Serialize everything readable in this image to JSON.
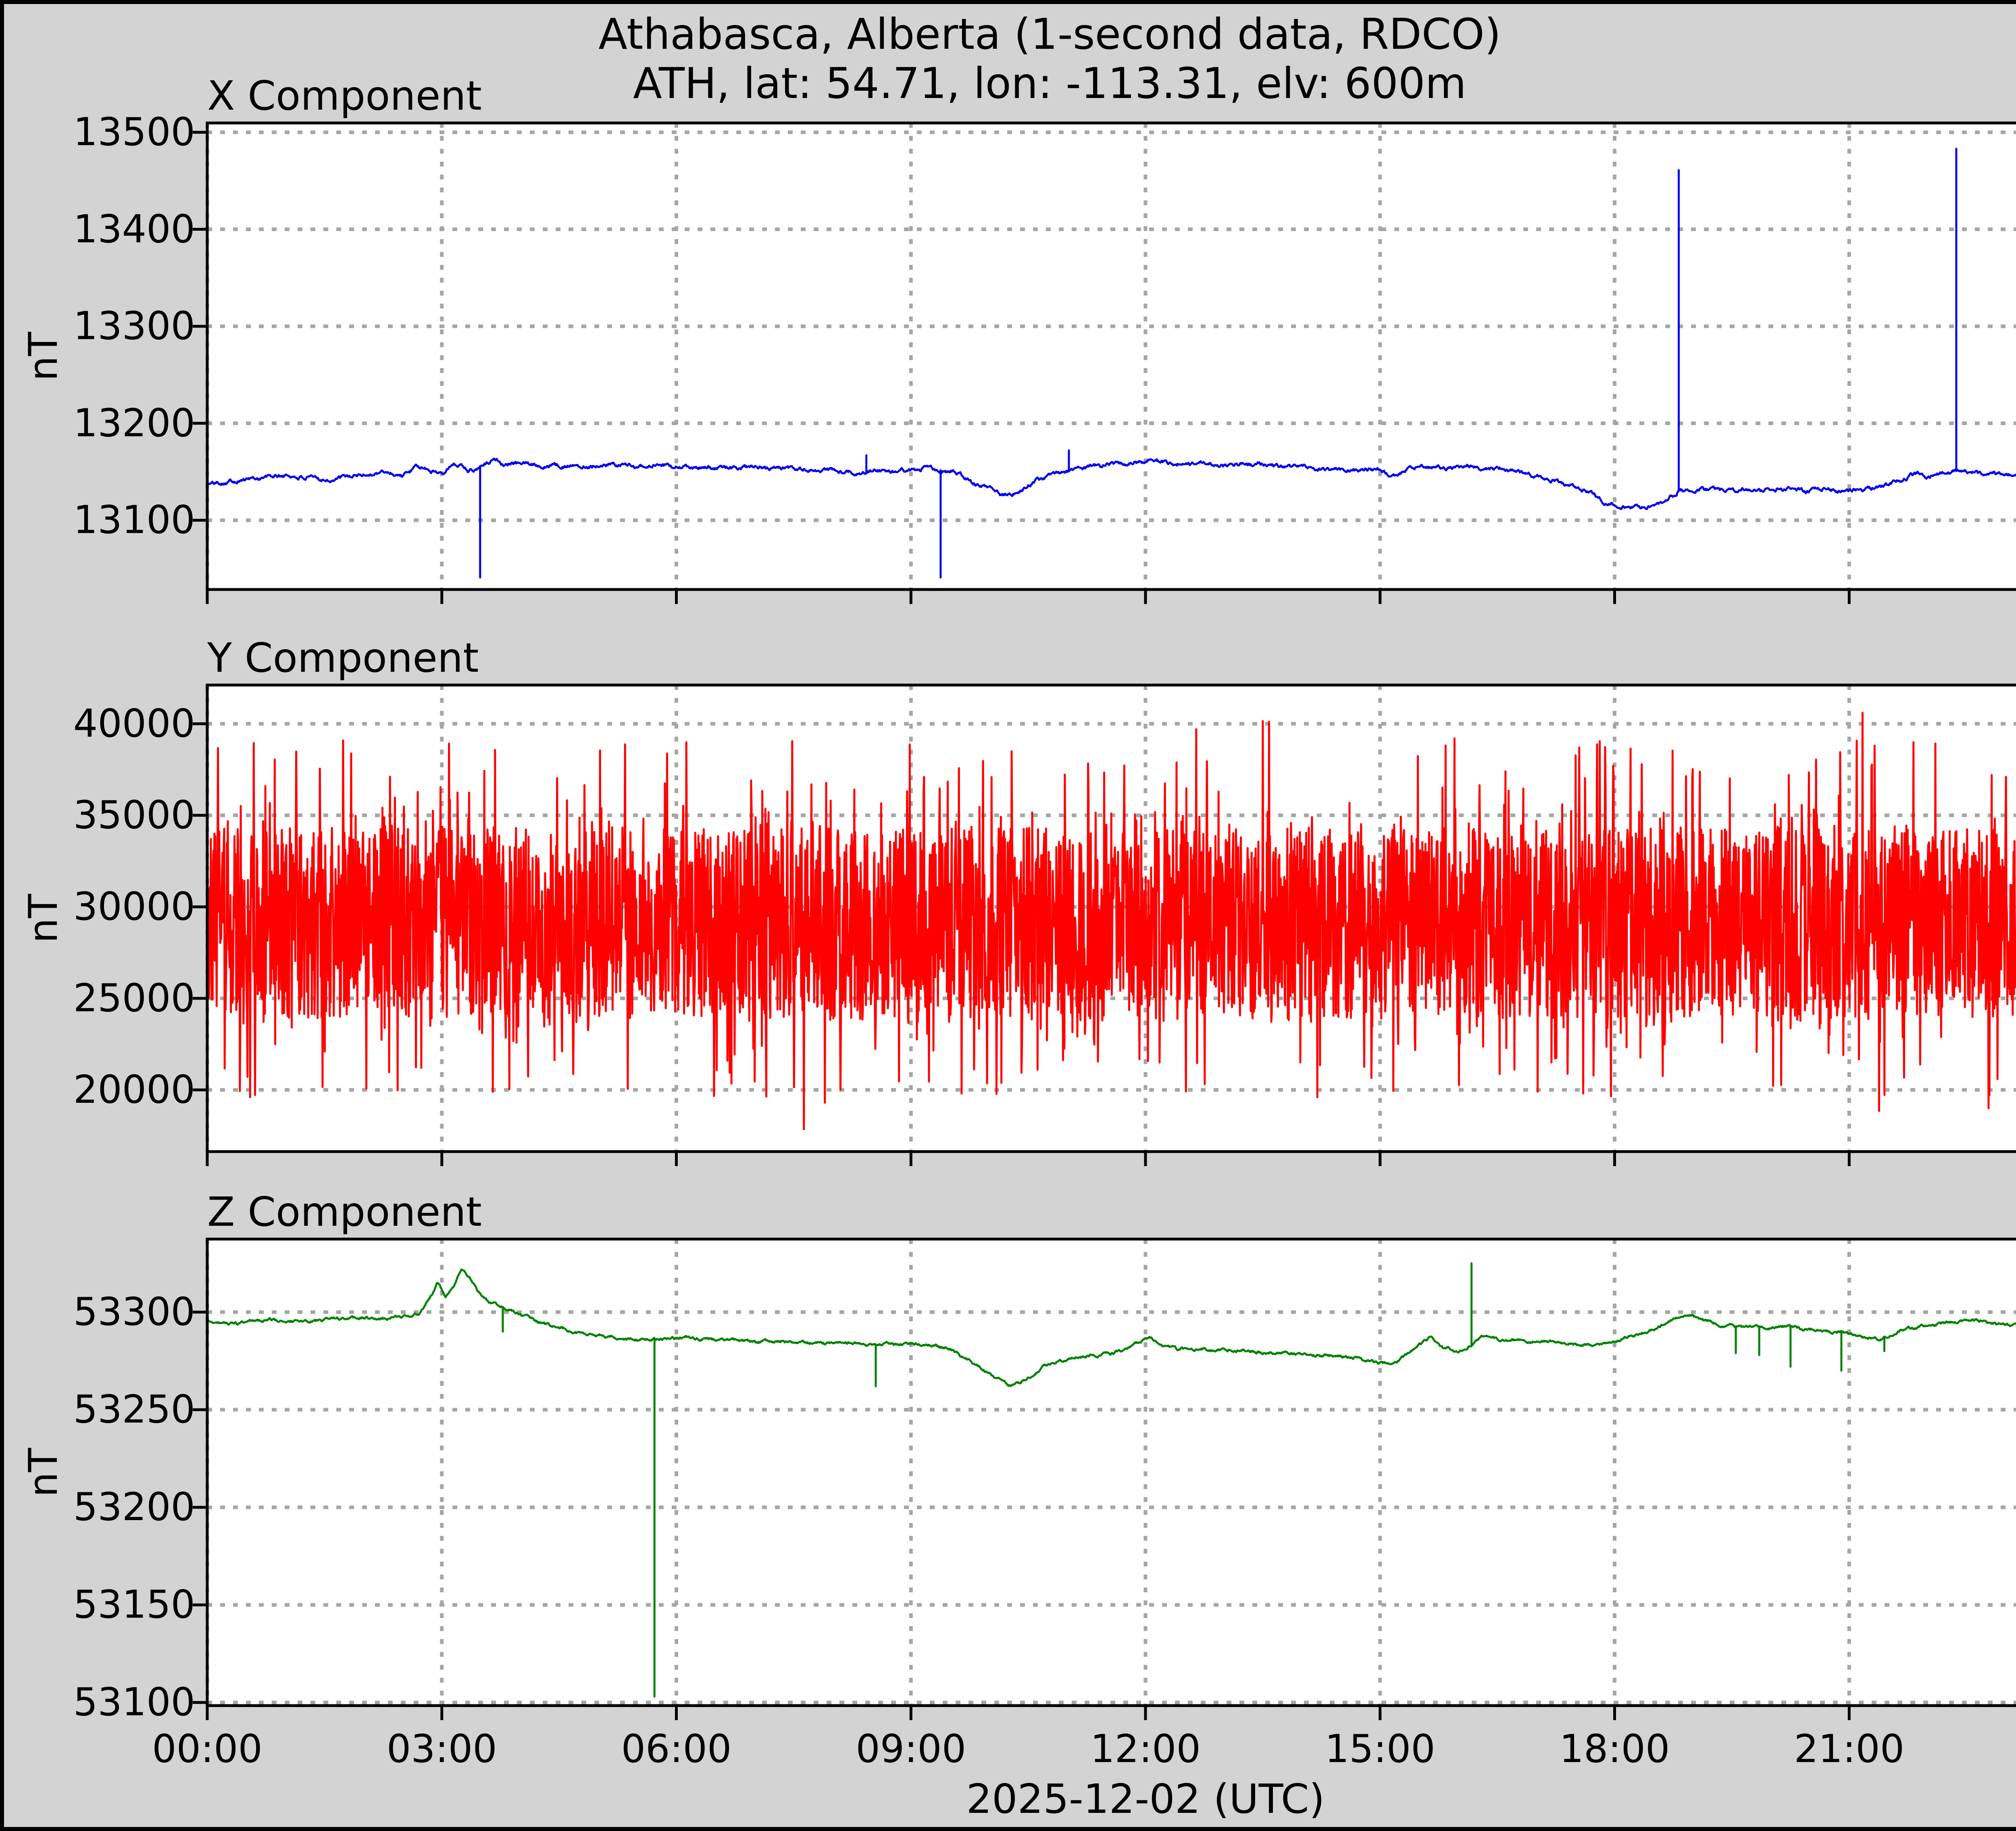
{
  "figure": {
    "title_line1": "Athabasca, Alberta (1-second data, RDCO)",
    "title_line2": "ATH, lat: 54.71, lon: -113.31, elv: 600m",
    "xlabel": "2025-12-02 (UTC)",
    "background_color": "#d3d3d3",
    "plot_background_color": "#ffffff",
    "grid_color": "#a6a6a6",
    "axis_color": "#000000"
  },
  "chart_data": [
    {
      "id": "x",
      "type": "line",
      "title": "X Component",
      "ylabel": "nT",
      "color": "#0000ee",
      "ylim": [
        13028.6,
        13509.6
      ],
      "yticks": [
        13100,
        13200,
        13300,
        13400,
        13500
      ],
      "xrange_hours": [
        0,
        24
      ],
      "xticks_hours": [
        0,
        3,
        6,
        9,
        12,
        15,
        18,
        21
      ],
      "xtick_labels": [
        "00:00",
        "03:00",
        "06:00",
        "09:00",
        "12:00",
        "15:00",
        "18:00",
        "21:00"
      ],
      "show_xticklabels": false,
      "grid": true,
      "noise_amp": 2.0,
      "seed": 101,
      "keypoints": [
        [
          0,
          13137
        ],
        [
          0.3,
          13141
        ],
        [
          0.7,
          13144
        ],
        [
          1.0,
          13146
        ],
        [
          1.3,
          13143
        ],
        [
          1.6,
          13142
        ],
        [
          2.0,
          13147
        ],
        [
          2.3,
          13150
        ],
        [
          2.5,
          13146
        ],
        [
          2.7,
          13155
        ],
        [
          2.85,
          13151
        ],
        [
          3.0,
          13150
        ],
        [
          3.1,
          13156
        ],
        [
          3.25,
          13158
        ],
        [
          3.35,
          13152
        ],
        [
          3.45,
          13153
        ],
        [
          3.55,
          13160
        ],
        [
          3.7,
          13162
        ],
        [
          3.8,
          13158
        ],
        [
          4.0,
          13159
        ],
        [
          4.3,
          13157
        ],
        [
          4.7,
          13156
        ],
        [
          5.0,
          13157
        ],
        [
          5.5,
          13156
        ],
        [
          6.0,
          13155
        ],
        [
          6.5,
          13154
        ],
        [
          7.0,
          13154
        ],
        [
          7.5,
          13153
        ],
        [
          8.0,
          13151
        ],
        [
          8.3,
          13149
        ],
        [
          8.5,
          13151
        ],
        [
          8.8,
          13150
        ],
        [
          9.0,
          13151
        ],
        [
          9.2,
          13153
        ],
        [
          9.45,
          13151
        ],
        [
          9.6,
          13150
        ],
        [
          9.75,
          13140
        ],
        [
          9.9,
          13136
        ],
        [
          10.05,
          13133
        ],
        [
          10.15,
          13127
        ],
        [
          10.3,
          13128
        ],
        [
          10.45,
          13134
        ],
        [
          10.6,
          13141
        ],
        [
          10.8,
          13146
        ],
        [
          11.0,
          13150
        ],
        [
          11.3,
          13155
        ],
        [
          11.6,
          13158
        ],
        [
          11.9,
          13160
        ],
        [
          12.1,
          13162
        ],
        [
          12.4,
          13158
        ],
        [
          12.7,
          13160
        ],
        [
          13.0,
          13156
        ],
        [
          13.3,
          13159
        ],
        [
          13.6,
          13157
        ],
        [
          14.0,
          13154
        ],
        [
          14.3,
          13152
        ],
        [
          14.6,
          13151
        ],
        [
          15.0,
          13153
        ],
        [
          15.2,
          13144
        ],
        [
          15.4,
          13155
        ],
        [
          15.8,
          13154
        ],
        [
          16.2,
          13154
        ],
        [
          16.6,
          13153
        ],
        [
          16.8,
          13150
        ],
        [
          17.0,
          13146
        ],
        [
          17.2,
          13142
        ],
        [
          17.4,
          13137
        ],
        [
          17.6,
          13131
        ],
        [
          17.75,
          13125
        ],
        [
          17.9,
          13117
        ],
        [
          18.05,
          13114
        ],
        [
          18.2,
          13115
        ],
        [
          18.35,
          13113
        ],
        [
          18.5,
          13116
        ],
        [
          18.65,
          13117
        ],
        [
          18.8,
          13130
        ],
        [
          18.95,
          13131
        ],
        [
          19.1,
          13133
        ],
        [
          19.3,
          13131
        ],
        [
          19.5,
          13129
        ],
        [
          19.7,
          13132
        ],
        [
          19.9,
          13130
        ],
        [
          20.1,
          13132
        ],
        [
          20.3,
          13131
        ],
        [
          20.5,
          13130
        ],
        [
          20.7,
          13133
        ],
        [
          20.9,
          13128
        ],
        [
          21.1,
          13131
        ],
        [
          21.3,
          13134
        ],
        [
          21.5,
          13136
        ],
        [
          21.7,
          13142
        ],
        [
          21.85,
          13147
        ],
        [
          22.0,
          13145
        ],
        [
          22.15,
          13149
        ],
        [
          22.3,
          13150
        ],
        [
          22.5,
          13152
        ],
        [
          22.7,
          13148
        ],
        [
          22.85,
          13151
        ],
        [
          23.0,
          13147
        ],
        [
          23.2,
          13150
        ],
        [
          23.4,
          13148
        ],
        [
          23.6,
          13146
        ],
        [
          23.8,
          13150
        ],
        [
          24.0,
          13153
        ]
      ],
      "spikes": [
        [
          3.49,
          13041
        ],
        [
          8.43,
          13167
        ],
        [
          9.38,
          13041
        ],
        [
          11.02,
          13172
        ],
        [
          18.82,
          13461
        ],
        [
          22.37,
          13483
        ]
      ]
    },
    {
      "id": "y",
      "type": "noisy_line",
      "title": "Y Component",
      "ylabel": "nT",
      "color": "#ff0000",
      "ylim": [
        16630,
        42114
      ],
      "yticks": [
        20000,
        25000,
        30000,
        35000,
        40000
      ],
      "xrange_hours": [
        0,
        24
      ],
      "xticks_hours": [
        0,
        3,
        6,
        9,
        12,
        15,
        18,
        21
      ],
      "xtick_labels": [
        "00:00",
        "03:00",
        "06:00",
        "09:00",
        "12:00",
        "15:00",
        "18:00",
        "21:00"
      ],
      "show_xticklabels": false,
      "grid": true,
      "center": 29100,
      "band_core": [
        23900,
        34300
      ],
      "tail_up_max": 4800,
      "tail_down_max": 4300,
      "tail_prob": 0.045,
      "seed": 202,
      "forced_extremes": [
        [
          0.55,
          19600
        ],
        [
          3.65,
          19900
        ],
        [
          7.63,
          17850
        ],
        [
          7.9,
          19300
        ],
        [
          12.65,
          39700
        ],
        [
          13.5,
          40150
        ],
        [
          13.58,
          40100
        ],
        [
          14.2,
          19600
        ],
        [
          15.95,
          39200
        ],
        [
          17.6,
          19800
        ],
        [
          21.17,
          40600
        ],
        [
          21.38,
          18850
        ],
        [
          22.78,
          19000
        ],
        [
          23.9,
          39800
        ]
      ]
    },
    {
      "id": "z",
      "type": "line",
      "title": "Z Component",
      "ylabel": "nT",
      "color": "#008000",
      "ylim": [
        53098.4,
        53337.4
      ],
      "yticks": [
        53100,
        53150,
        53200,
        53250,
        53300
      ],
      "xrange_hours": [
        0,
        24
      ],
      "xticks_hours": [
        0,
        3,
        6,
        9,
        12,
        15,
        18,
        21
      ],
      "xtick_labels": [
        "00:00",
        "03:00",
        "06:00",
        "09:00",
        "12:00",
        "15:00",
        "18:00",
        "21:00"
      ],
      "show_xticklabels": true,
      "grid": true,
      "noise_amp": 0.7,
      "seed": 303,
      "keypoints": [
        [
          0,
          53295
        ],
        [
          0.4,
          53294
        ],
        [
          0.8,
          53296
        ],
        [
          1.2,
          53295
        ],
        [
          1.6,
          53296
        ],
        [
          2.0,
          53297
        ],
        [
          2.4,
          53297
        ],
        [
          2.7,
          53299
        ],
        [
          2.85,
          53308
        ],
        [
          2.95,
          53315
        ],
        [
          3.05,
          53309
        ],
        [
          3.15,
          53314
        ],
        [
          3.25,
          53321
        ],
        [
          3.35,
          53318
        ],
        [
          3.45,
          53311
        ],
        [
          3.6,
          53305
        ],
        [
          3.75,
          53303
        ],
        [
          3.9,
          53300
        ],
        [
          4.1,
          53297
        ],
        [
          4.3,
          53294
        ],
        [
          4.6,
          53291
        ],
        [
          4.9,
          53288
        ],
        [
          5.2,
          53287
        ],
        [
          5.5,
          53286
        ],
        [
          5.8,
          53286
        ],
        [
          6.1,
          53287
        ],
        [
          6.4,
          53286
        ],
        [
          6.7,
          53286
        ],
        [
          7.0,
          53285
        ],
        [
          7.4,
          53285
        ],
        [
          7.8,
          53284
        ],
        [
          8.2,
          53284
        ],
        [
          8.6,
          53283
        ],
        [
          9.0,
          53284
        ],
        [
          9.3,
          53283
        ],
        [
          9.5,
          53281
        ],
        [
          9.7,
          53276
        ],
        [
          9.9,
          53271
        ],
        [
          10.1,
          53266
        ],
        [
          10.25,
          53263
        ],
        [
          10.4,
          53264
        ],
        [
          10.6,
          53269
        ],
        [
          10.8,
          53274
        ],
        [
          11.0,
          53276
        ],
        [
          11.3,
          53278
        ],
        [
          11.6,
          53279
        ],
        [
          11.9,
          53284
        ],
        [
          12.05,
          53287
        ],
        [
          12.2,
          53283
        ],
        [
          12.4,
          53281
        ],
        [
          12.7,
          53281
        ],
        [
          13.0,
          53281
        ],
        [
          13.4,
          53280
        ],
        [
          13.8,
          53279
        ],
        [
          14.2,
          53278
        ],
        [
          14.6,
          53277
        ],
        [
          14.9,
          53275
        ],
        [
          15.1,
          53273
        ],
        [
          15.3,
          53277
        ],
        [
          15.5,
          53283
        ],
        [
          15.65,
          53287
        ],
        [
          15.8,
          53282
        ],
        [
          16.0,
          53280
        ],
        [
          16.3,
          53287
        ],
        [
          16.6,
          53286
        ],
        [
          17.0,
          53285
        ],
        [
          17.4,
          53284
        ],
        [
          17.8,
          53283
        ],
        [
          18.0,
          53285
        ],
        [
          18.2,
          53288
        ],
        [
          18.5,
          53291
        ],
        [
          18.8,
          53297
        ],
        [
          19.0,
          53298
        ],
        [
          19.2,
          53295
        ],
        [
          19.4,
          53293
        ],
        [
          19.6,
          53292
        ],
        [
          19.8,
          53293
        ],
        [
          20.0,
          53292
        ],
        [
          20.2,
          53293
        ],
        [
          20.5,
          53291
        ],
        [
          20.8,
          53290
        ],
        [
          21.0,
          53289
        ],
        [
          21.2,
          53287
        ],
        [
          21.4,
          53286
        ],
        [
          21.6,
          53290
        ],
        [
          21.8,
          53292
        ],
        [
          22.0,
          53293
        ],
        [
          22.3,
          53295
        ],
        [
          22.6,
          53296
        ],
        [
          22.9,
          53294
        ],
        [
          23.2,
          53293
        ],
        [
          23.5,
          53294
        ],
        [
          23.8,
          53294
        ],
        [
          24.0,
          53295
        ]
      ],
      "spikes": [
        [
          3.78,
          53290
        ],
        [
          5.72,
          53103
        ],
        [
          8.55,
          53262
        ],
        [
          16.17,
          53325
        ],
        [
          19.55,
          53279
        ],
        [
          19.85,
          53278
        ],
        [
          20.25,
          53272
        ],
        [
          20.9,
          53270
        ],
        [
          21.45,
          53280
        ]
      ]
    }
  ]
}
